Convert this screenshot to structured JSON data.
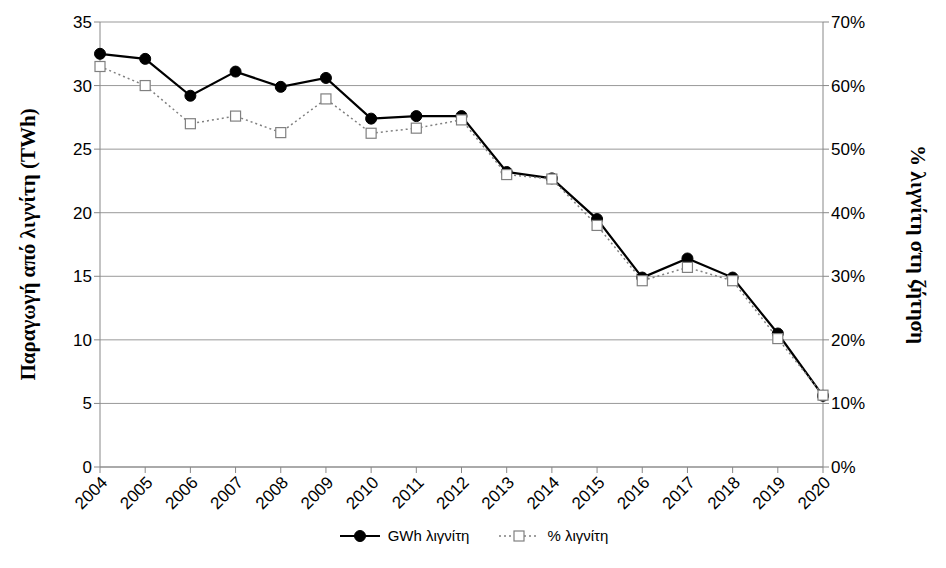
{
  "chart_data": {
    "type": "line",
    "categories": [
      "2004",
      "2005",
      "2006",
      "2007",
      "2008",
      "2009",
      "2010",
      "2011",
      "2012",
      "2013",
      "2014",
      "2015",
      "2016",
      "2017",
      "2018",
      "2019",
      "2020"
    ],
    "y_label": "Παραγωγή από λιγνίτη (TWh)",
    "y2_label": "% λιγνίτη στη ζήτηση",
    "series": [
      {
        "name": "GWh λιγνίτη",
        "color": "#000000",
        "marker": "circle",
        "line_style": "solid",
        "values": [
          32.5,
          32.1,
          29.2,
          31.1,
          29.9,
          30.6,
          27.4,
          27.6,
          27.6,
          23.2,
          22.7,
          19.5,
          14.9,
          16.4,
          14.9,
          10.5,
          5.6
        ]
      },
      {
        "name": "% λιγνίτη",
        "color": "#808080",
        "marker": "square",
        "line_style": "dotted",
        "axis": "y2",
        "values": [
          63,
          60,
          54,
          55.2,
          52.6,
          57.9,
          52.5,
          53.3,
          54.6,
          46,
          45.3,
          38,
          29.3,
          31.4,
          29.3,
          20.2,
          11.3
        ]
      }
    ],
    "ylim": [
      0,
      35
    ],
    "yticks": [
      0,
      5,
      10,
      15,
      20,
      25,
      30,
      35
    ],
    "y2lim": [
      0,
      70
    ],
    "y2ticks": [
      {
        "value": 0,
        "label": "0%"
      },
      {
        "value": 10,
        "label": "10%"
      },
      {
        "value": 20,
        "label": "20%"
      },
      {
        "value": 30,
        "label": "30%"
      },
      {
        "value": 40,
        "label": "40%"
      },
      {
        "value": 50,
        "label": "50%"
      },
      {
        "value": 60,
        "label": "60%"
      },
      {
        "value": 70,
        "label": "70%"
      }
    ],
    "grid": true,
    "legend": "bottom"
  }
}
